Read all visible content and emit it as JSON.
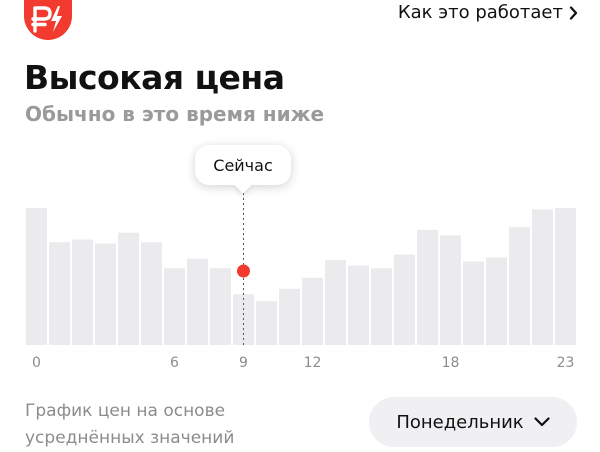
{
  "header": {
    "how_it_works": "Как это работает"
  },
  "headline": {
    "title": "Высокая цена",
    "subtitle": "Обычно в это время ниже"
  },
  "marker": {
    "now_label": "Сейчас"
  },
  "footer": {
    "line1": "График цен на основе",
    "line2": "усреднённых значений",
    "day_selected": "Понедельник"
  },
  "colors": {
    "accent": "#f23a2f",
    "bar": "#ebebed",
    "text": "#111111",
    "muted": "#9a9a9a"
  },
  "icons": {
    "logo": "ruble-lightning-icon",
    "link": "chevron-right-icon",
    "select": "chevron-down-icon"
  },
  "chart_data": {
    "type": "bar",
    "categories": [
      0,
      1,
      2,
      3,
      4,
      5,
      6,
      7,
      8,
      9,
      10,
      11,
      12,
      13,
      14,
      15,
      16,
      17,
      18,
      19,
      20,
      21,
      22,
      23
    ],
    "values": [
      100,
      75,
      77,
      74,
      82,
      75,
      56,
      63,
      56,
      37,
      32,
      41,
      49,
      62,
      58,
      56,
      66,
      84,
      80,
      61,
      64,
      86,
      99,
      100
    ],
    "current_hour": 9,
    "current_level": 54,
    "ylim": [
      0,
      100
    ],
    "xtick_labels": [
      "0",
      "6",
      "9",
      "12",
      "18",
      "23"
    ],
    "xtick_positions": [
      0,
      6,
      9,
      12,
      18,
      23
    ],
    "grid": false
  }
}
